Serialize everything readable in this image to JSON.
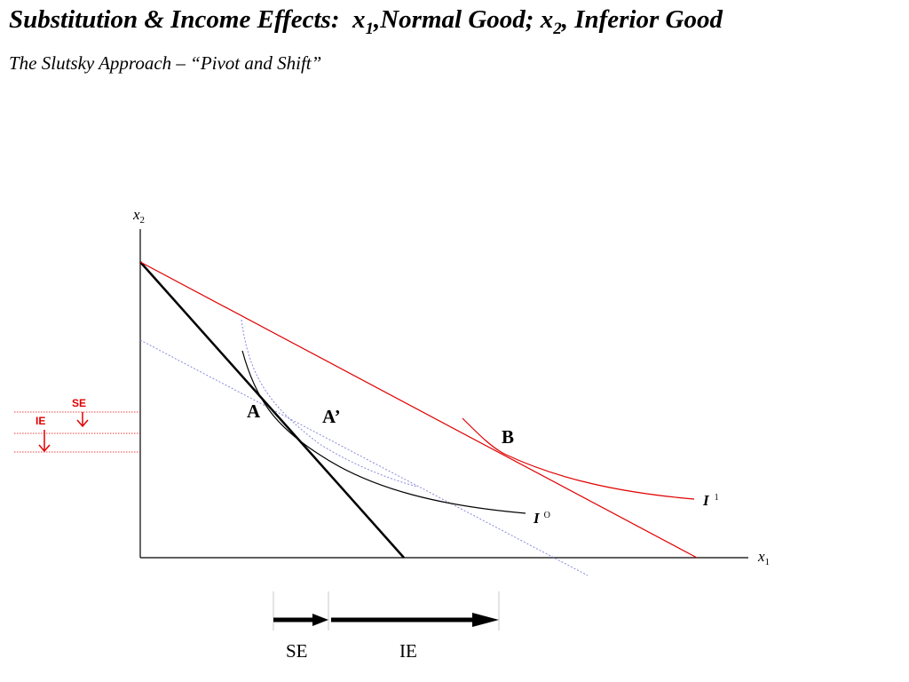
{
  "title": {
    "part1": "Substitution & Income Effects:",
    "x1_var": "x",
    "x1_sub": "1",
    "part2": ",Normal Good; ",
    "x2_var": "x",
    "x2_sub": "2",
    "part3": ", Inferior Good"
  },
  "subtitle": "The Slutsky Approach – “Pivot and Shift”",
  "axes": {
    "y_var": "x",
    "y_sub": "2",
    "x_var": "x",
    "x_sub": "1"
  },
  "points": {
    "A": "A",
    "A_prime": "A’",
    "B": "B"
  },
  "curves": {
    "I0_var": "I",
    "I0_sup": "O",
    "I1_var": "I",
    "I1_sup": "1"
  },
  "vertical_effects": {
    "se": "SE",
    "ie": "IE"
  },
  "horizontal_effects": {
    "se": "SE",
    "ie": "IE"
  },
  "colors": {
    "original_budget": "#000000",
    "new_budget": "#e00000",
    "compensated_budget": "#8888dd",
    "indifference_new": "#e00000",
    "effects_vertical": "#e00000",
    "effects_horizontal": "#000000"
  }
}
